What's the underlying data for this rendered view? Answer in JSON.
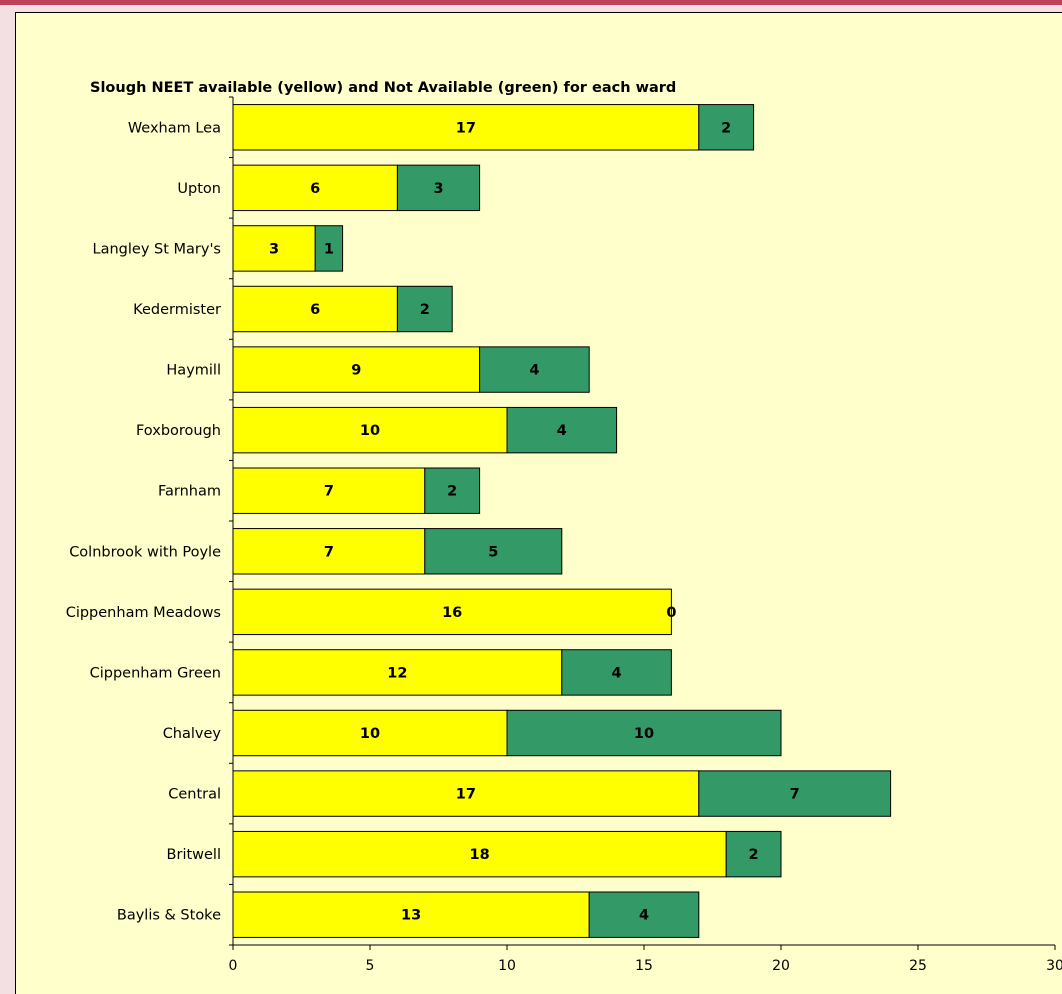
{
  "chart_data": {
    "type": "bar",
    "orientation": "horizontal",
    "stacked": true,
    "title": "Slough NEET available (yellow) and Not Available (green) for each ward",
    "xlim": [
      0,
      30
    ],
    "xticks": [
      0,
      5,
      10,
      15,
      20,
      25,
      30
    ],
    "grid": false,
    "legend": "none",
    "categories": [
      "Wexham Lea",
      "Upton",
      "Langley St Mary's",
      "Kedermister",
      "Haymill",
      "Foxborough",
      "Farnham",
      "Colnbrook with Poyle",
      "Cippenham Meadows",
      "Cippenham Green",
      "Chalvey",
      "Central",
      "Britwell",
      "Baylis & Stoke"
    ],
    "series": [
      {
        "color": "#ffff00",
        "values": [
          17,
          6,
          3,
          6,
          9,
          10,
          7,
          7,
          16,
          12,
          10,
          17,
          18,
          13
        ]
      },
      {
        "color": "#339966",
        "values": [
          2,
          3,
          1,
          2,
          4,
          4,
          2,
          5,
          0,
          4,
          10,
          7,
          2,
          4
        ]
      }
    ]
  }
}
